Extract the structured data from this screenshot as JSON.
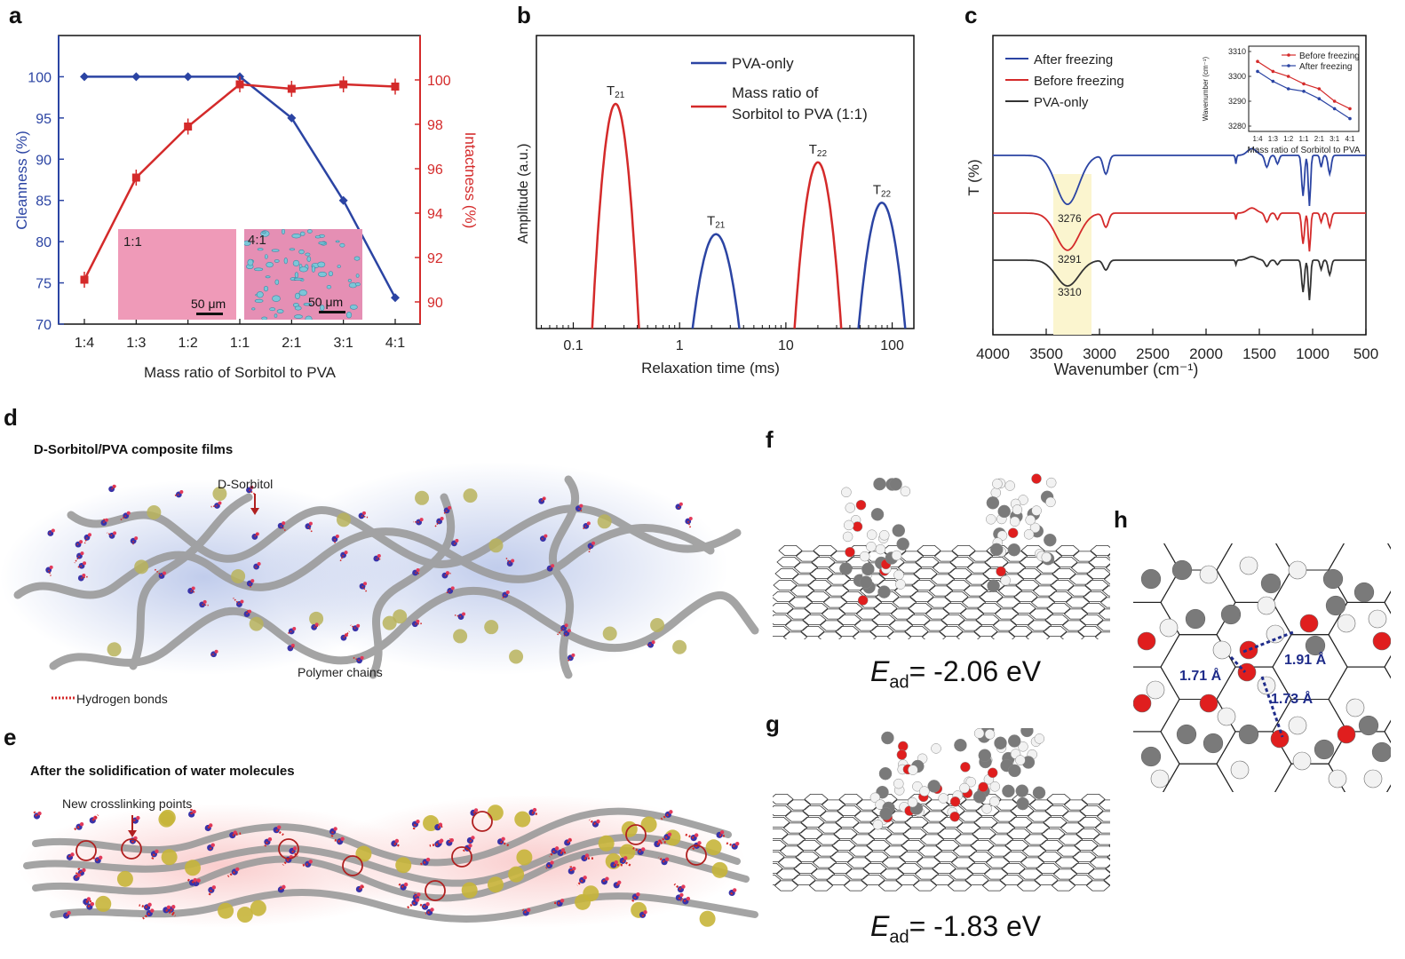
{
  "panels": {
    "a": "a",
    "b": "b",
    "c": "c",
    "d": "d",
    "e": "e",
    "f": "f",
    "g": "g",
    "h": "h"
  },
  "chart_data": [
    {
      "type": "line",
      "panel": "a",
      "xlabel": "Mass ratio of Sorbitol to PVA",
      "ylabel_left": "Cleanness (%)",
      "ylabel_right": "Intactness (%)",
      "categories": [
        "1:4",
        "1:3",
        "1:2",
        "1:1",
        "2:1",
        "3:1",
        "4:1"
      ],
      "ylim_left": [
        70,
        105
      ],
      "ylim_right": [
        89,
        102
      ],
      "yticks_left": [
        "70",
        "75",
        "80",
        "85",
        "90",
        "95",
        "100"
      ],
      "yticks_right": [
        "90",
        "92",
        "94",
        "96",
        "98",
        "100"
      ],
      "series": [
        {
          "name": "Cleanness",
          "axis": "left",
          "color": "#2b44a3",
          "values": [
            100,
            100,
            100,
            100,
            95,
            85,
            73.2
          ]
        },
        {
          "name": "Intactness",
          "axis": "right",
          "color": "#d42a2a",
          "values": [
            91.0,
            95.6,
            97.9,
            99.8,
            99.6,
            99.8,
            99.7
          ]
        }
      ],
      "insets": [
        {
          "label": "1:1",
          "scale": "50 μm",
          "color": "#ef9ab8"
        },
        {
          "label": "4:1",
          "scale": "50 μm",
          "color": "#e58fb4"
        }
      ]
    },
    {
      "type": "line",
      "panel": "b",
      "xlabel": "Relaxation time (ms)",
      "ylabel": "Amplitude (a.u.)",
      "xscale": "log",
      "xticks": [
        "0.1",
        "1",
        "10",
        "100"
      ],
      "series": [
        {
          "name": "PVA-only",
          "color": "#2b44a3",
          "peaks": [
            {
              "label": "T21",
              "center": 2.2,
              "height": 0.42
            },
            {
              "label": "T22",
              "center": 80,
              "height": 0.56
            }
          ]
        },
        {
          "name": "Mass ratio of Sorbitol to PVA (1:1)",
          "color": "#d42a2a",
          "peaks": [
            {
              "label": "T21",
              "center": 0.25,
              "height": 1.0
            },
            {
              "label": "T22",
              "center": 20,
              "height": 0.74
            }
          ]
        }
      ],
      "peak_labels": {
        "t21": "T",
        "t21_sub": "21",
        "t22": "T",
        "t22_sub": "22"
      }
    },
    {
      "type": "line",
      "panel": "c",
      "xlabel": "Wavenumber (cm⁻¹)",
      "ylabel": "T (%)",
      "xticks": [
        "4000",
        "3500",
        "3000",
        "2500",
        "2000",
        "1500",
        "1000",
        "500"
      ],
      "series": [
        {
          "name": "After freezing",
          "color": "#2b44a3",
          "peak": "3276"
        },
        {
          "name": "Before freezing",
          "color": "#d42a2a",
          "peak": "3291"
        },
        {
          "name": "PVA-only",
          "color": "#333333",
          "peak": "3310"
        }
      ],
      "inset": {
        "ylabel": "Wavenumber (cm⁻¹)",
        "xlabel": "Mass ratio of Sorbitol to PVA",
        "categories": [
          "1:4",
          "1:3",
          "1:2",
          "1:1",
          "2:1",
          "3:1",
          "4:1"
        ],
        "yticks": [
          "3280",
          "3290",
          "3300",
          "3310"
        ],
        "series": [
          {
            "name": "Before freezing",
            "color": "#d42a2a",
            "values": [
              3306,
              3302,
              3300,
              3297,
              3295,
              3290,
              3287
            ]
          },
          {
            "name": "After freezing",
            "color": "#2b44a3",
            "values": [
              3302,
              3298,
              3295,
              3294,
              3291,
              3287,
              3283
            ]
          }
        ]
      }
    }
  ],
  "d": {
    "title": "D-Sorbitol/PVA composite films",
    "sorbitol_label": "D-Sorbitol",
    "chains_label": "Polymer chains",
    "hbond_label": "Hydrogen bonds"
  },
  "e": {
    "title": "After the solidification of water molecules",
    "crosslink_label": "New crosslinking points"
  },
  "f": {
    "e_symbol": "E",
    "e_sub": "ad",
    "e_value": "= -2.06 eV"
  },
  "g": {
    "e_symbol": "E",
    "e_sub": "ad",
    "e_value": "= -1.83 eV"
  },
  "h": {
    "bonds": [
      "1.71 Å",
      "1.91 Å",
      "1.73 Å"
    ]
  }
}
